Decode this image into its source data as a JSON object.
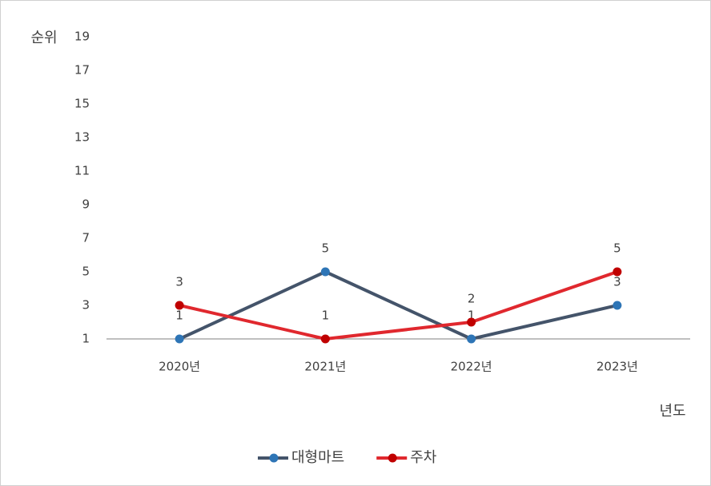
{
  "chart_data": {
    "type": "line",
    "y_label": "순위",
    "x_label": "년도",
    "categories": [
      "2020년",
      "2021년",
      "2022년",
      "2023년"
    ],
    "series": [
      {
        "name": "대형마트",
        "color": "#44546a",
        "marker_color": "#2e75b6",
        "values": [
          1,
          5,
          1,
          3
        ]
      },
      {
        "name": "주차",
        "color": "#e0282e",
        "marker_color": "#c00000",
        "values": [
          3,
          1,
          2,
          5
        ]
      }
    ],
    "ylim": [
      1,
      19
    ],
    "yticks": [
      1,
      3,
      5,
      7,
      9,
      11,
      13,
      15,
      17,
      19
    ],
    "grid": false,
    "legend": "bottom"
  }
}
